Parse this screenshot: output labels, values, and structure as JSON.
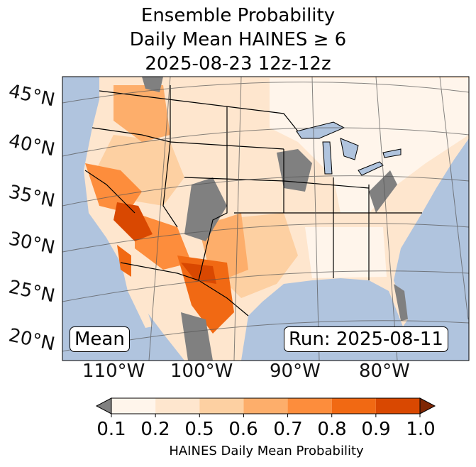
{
  "title_lines": [
    "Ensemble Probability",
    "Daily Mean HAINES ≥ 6",
    "2025-08-23 12z-12z"
  ],
  "lat_labels": [
    "45°N",
    "40°N",
    "35°N",
    "30°N",
    "25°N",
    "20°N"
  ],
  "lon_labels": [
    "110°W",
    "100°W",
    "90°W",
    "80°W"
  ],
  "stat_label": "Mean",
  "run_label": "Run: 2025-08-11",
  "colors": {
    "ocean": "#b0c4de",
    "lakes": "#b0c4de",
    "below_min": "#808080",
    "above_max": "#7f2704"
  },
  "chart_data": {
    "type": "heatmap",
    "title": "Ensemble Probability Daily Mean HAINES ≥ 6 2025-08-23 12z-12z",
    "colorbar": {
      "label": "HAINES Daily Mean Probability",
      "ticks": [
        "0.1",
        "0.2",
        "0.5",
        "0.6",
        "0.7",
        "0.8",
        "0.9",
        "1.0"
      ],
      "levels": [
        0.1,
        0.2,
        0.5,
        0.6,
        0.7,
        0.8,
        0.9,
        1.0
      ],
      "colors": [
        "#fff5eb",
        "#fee6ce",
        "#fdd0a2",
        "#fdae6b",
        "#fd8d3c",
        "#f16913",
        "#d94801"
      ],
      "extend": "both"
    },
    "region": "CONUS",
    "lat_range": [
      20,
      45
    ],
    "lon_range": [
      -115,
      -75
    ]
  }
}
